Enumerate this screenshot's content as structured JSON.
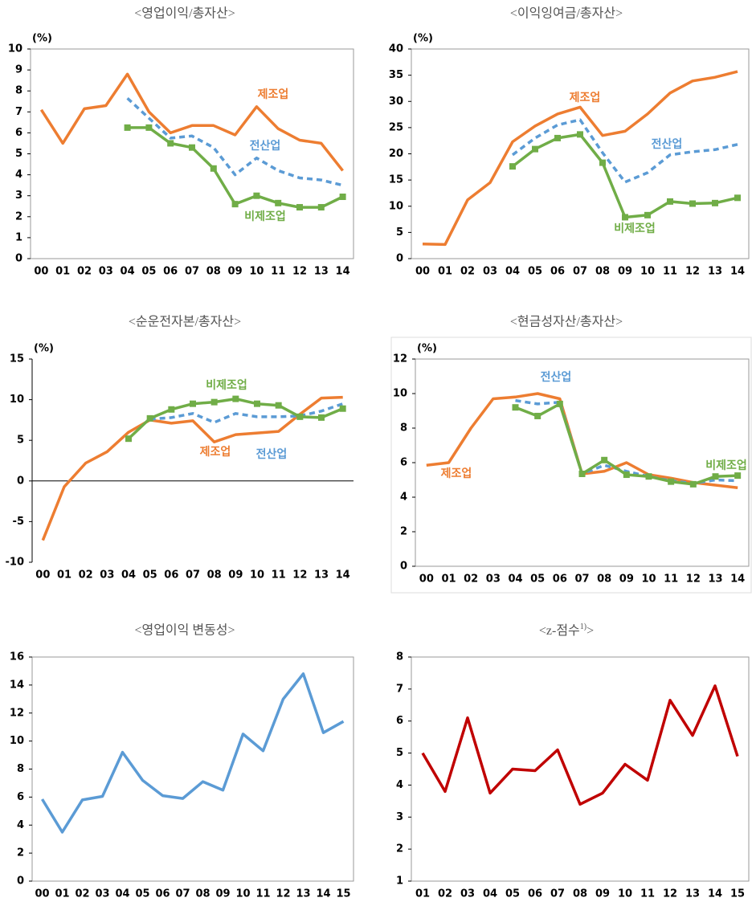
{
  "chart_data": [
    {
      "type": "line",
      "title": "<영업이익/총자산>",
      "unit": "(%)",
      "frame": true,
      "categories": [
        "00",
        "01",
        "02",
        "03",
        "04",
        "05",
        "06",
        "07",
        "08",
        "09",
        "10",
        "11",
        "12",
        "13",
        "14"
      ],
      "ylim": [
        0,
        10
      ],
      "yticks": [
        0,
        1,
        2,
        3,
        4,
        5,
        6,
        7,
        8,
        9,
        10
      ],
      "series": [
        {
          "name": "제조업",
          "color": "#ED7D31",
          "values": [
            7.1,
            5.5,
            7.15,
            7.3,
            8.8,
            7.0,
            6.0,
            6.35,
            6.35,
            5.9,
            7.25,
            6.2,
            5.65,
            5.5,
            4.2
          ]
        },
        {
          "name": "전산업",
          "color": "#5B9BD5",
          "dash": true,
          "values": [
            null,
            null,
            null,
            null,
            7.65,
            6.7,
            5.75,
            5.85,
            5.3,
            4.0,
            4.8,
            4.2,
            3.85,
            3.75,
            3.5
          ]
        },
        {
          "name": "비제조업",
          "color": "#70AD47",
          "marker": "square",
          "values": [
            null,
            null,
            null,
            null,
            6.25,
            6.25,
            5.5,
            5.3,
            4.3,
            2.6,
            3.0,
            2.65,
            2.45,
            2.45,
            2.95
          ]
        }
      ]
    },
    {
      "type": "line",
      "title": "<이익잉여금/총자산>",
      "unit": "(%)",
      "frame": true,
      "categories": [
        "00",
        "01",
        "02",
        "03",
        "04",
        "05",
        "06",
        "07",
        "08",
        "09",
        "10",
        "11",
        "12",
        "13",
        "14"
      ],
      "ylim": [
        0,
        40
      ],
      "yticks": [
        0,
        5,
        10,
        15,
        20,
        25,
        30,
        35,
        40
      ],
      "series": [
        {
          "name": "제조업",
          "color": "#ED7D31",
          "values": [
            2.8,
            2.7,
            11.2,
            14.5,
            22.3,
            25.3,
            27.6,
            28.9,
            23.5,
            24.3,
            27.6,
            31.6,
            33.9,
            34.6,
            35.7
          ]
        },
        {
          "name": "전산업",
          "color": "#5B9BD5",
          "dash": true,
          "values": [
            null,
            null,
            null,
            null,
            19.8,
            23.0,
            25.5,
            26.5,
            20.2,
            14.6,
            16.4,
            19.8,
            20.4,
            20.8,
            21.8
          ]
        },
        {
          "name": "비제조업",
          "color": "#70AD47",
          "marker": "square",
          "values": [
            null,
            null,
            null,
            null,
            17.6,
            20.9,
            23.0,
            23.7,
            18.3,
            7.9,
            8.3,
            10.9,
            10.5,
            10.6,
            11.6
          ]
        }
      ]
    },
    {
      "type": "line",
      "title": "<순운전자본/총자산>",
      "unit": "(%)",
      "frame": false,
      "zero_line": true,
      "categories": [
        "00",
        "01",
        "02",
        "03",
        "04",
        "05",
        "06",
        "07",
        "08",
        "09",
        "10",
        "11",
        "12",
        "13",
        "14"
      ],
      "ylim": [
        -10,
        15
      ],
      "yticks": [
        -10,
        -5,
        0,
        5,
        10,
        15
      ],
      "series": [
        {
          "name": "제조업",
          "color": "#ED7D31",
          "values": [
            -7.3,
            -0.7,
            2.2,
            3.6,
            6.0,
            7.5,
            7.1,
            7.4,
            4.8,
            5.7,
            5.9,
            6.1,
            8.2,
            10.2,
            10.3
          ]
        },
        {
          "name": "전산업",
          "color": "#5B9BD5",
          "dash": true,
          "values": [
            null,
            null,
            null,
            null,
            null,
            7.6,
            7.8,
            8.3,
            7.2,
            8.3,
            7.9,
            7.9,
            8.0,
            8.6,
            9.5
          ]
        },
        {
          "name": "비제조업",
          "color": "#70AD47",
          "marker": "square",
          "values": [
            null,
            null,
            null,
            null,
            5.2,
            7.7,
            8.8,
            9.5,
            9.7,
            10.1,
            9.5,
            9.3,
            7.9,
            7.8,
            8.9
          ]
        }
      ]
    },
    {
      "type": "line",
      "title": "<현금성자산/총자산>",
      "unit": "(%)",
      "frame": true,
      "categories": [
        "00",
        "01",
        "02",
        "03",
        "04",
        "05",
        "06",
        "07",
        "08",
        "09",
        "10",
        "11",
        "12",
        "13",
        "14"
      ],
      "ylim": [
        0,
        12
      ],
      "yticks": [
        0,
        2,
        4,
        6,
        8,
        10,
        12
      ],
      "series": [
        {
          "name": "제조업",
          "color": "#ED7D31",
          "values": [
            5.85,
            6.0,
            8.0,
            9.7,
            9.8,
            10.0,
            9.7,
            5.35,
            5.5,
            6.0,
            5.3,
            5.1,
            4.85,
            4.7,
            4.55
          ]
        },
        {
          "name": "전산업",
          "color": "#5B9BD5",
          "dash": true,
          "values": [
            null,
            null,
            null,
            null,
            9.6,
            9.4,
            9.5,
            5.35,
            5.85,
            5.5,
            5.2,
            4.95,
            4.8,
            5.0,
            4.95
          ]
        },
        {
          "name": "비제조업",
          "color": "#70AD47",
          "marker": "square",
          "values": [
            null,
            null,
            null,
            null,
            9.2,
            8.7,
            9.4,
            5.35,
            6.15,
            5.3,
            5.2,
            4.9,
            4.75,
            5.2,
            5.25
          ]
        }
      ]
    },
    {
      "type": "line",
      "title": "<영업이익  변동성>",
      "frame": true,
      "categories": [
        "00",
        "01",
        "02",
        "03",
        "04",
        "05",
        "06",
        "07",
        "08",
        "09",
        "10",
        "11",
        "12",
        "13",
        "14",
        "15"
      ],
      "ylim": [
        0,
        16
      ],
      "yticks": [
        0,
        2,
        4,
        6,
        8,
        10,
        12,
        14,
        16
      ],
      "series": [
        {
          "color": "#5B9BD5",
          "values": [
            5.85,
            3.5,
            5.8,
            6.05,
            9.2,
            7.2,
            6.1,
            5.9,
            7.1,
            6.5,
            10.5,
            9.3,
            13.0,
            14.8,
            10.6,
            11.4
          ]
        }
      ]
    },
    {
      "type": "line",
      "title_parts": [
        "<z-점수",
        "1)",
        ">"
      ],
      "frame": true,
      "categories": [
        "01",
        "02",
        "03",
        "04",
        "05",
        "06",
        "07",
        "08",
        "09",
        "10",
        "11",
        "12",
        "13",
        "14",
        "15"
      ],
      "ylim": [
        1,
        8
      ],
      "yticks": [
        1,
        2,
        3,
        4,
        5,
        6,
        7,
        8
      ],
      "series": [
        {
          "color": "#C00000",
          "values": [
            5.0,
            3.8,
            6.1,
            3.75,
            4.5,
            4.45,
            5.1,
            3.4,
            3.75,
            4.65,
            4.15,
            6.65,
            5.55,
            7.1,
            4.9
          ]
        }
      ]
    }
  ]
}
